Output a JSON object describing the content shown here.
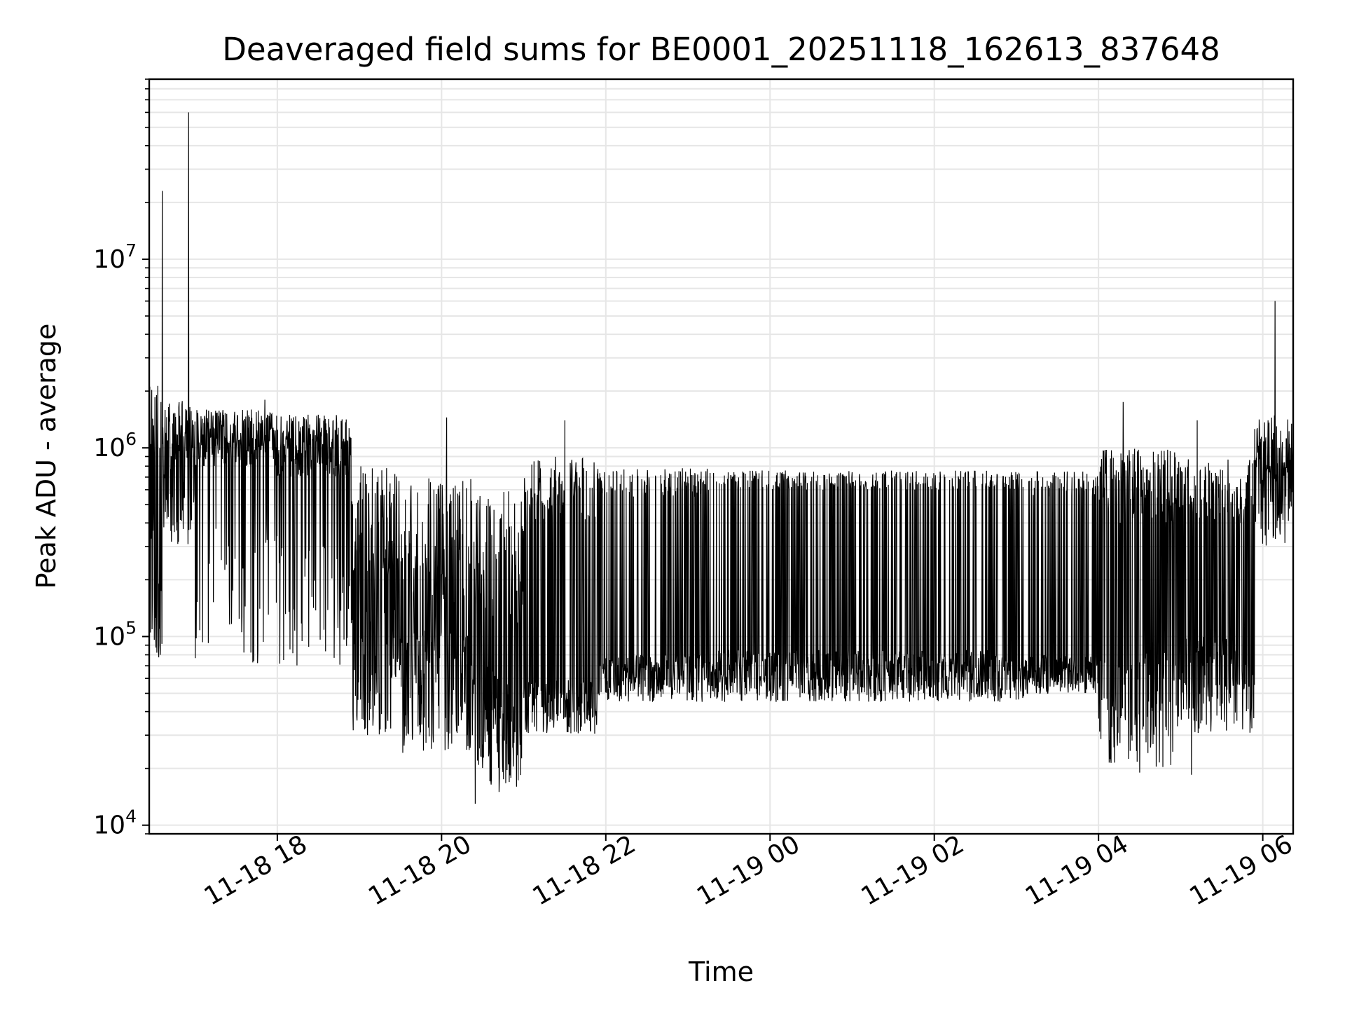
{
  "chart_data": {
    "type": "line",
    "title": "Deaveraged field sums for BE0001_20251118_162613_837648",
    "xlabel": "Time",
    "ylabel": "Peak ADU - average",
    "yscale": "log",
    "ylim": [
      9000,
      90000000
    ],
    "xlim_hours_from_2025_11_18_00_00": [
      16.44,
      30.37
    ],
    "grid": true,
    "legend": "none",
    "line_color": "#000000",
    "grid_color": "#e6e6e6",
    "x_ticks": [
      {
        "label": "11-18 18",
        "hours": 18
      },
      {
        "label": "11-18 20",
        "hours": 20
      },
      {
        "label": "11-18 22",
        "hours": 22
      },
      {
        "label": "11-19 00",
        "hours": 24
      },
      {
        "label": "11-19 02",
        "hours": 26
      },
      {
        "label": "11-19 04",
        "hours": 28
      },
      {
        "label": "11-19 06",
        "hours": 30
      }
    ],
    "y_ticks": [
      {
        "base": "10",
        "exp": "4",
        "value": 10000
      },
      {
        "base": "10",
        "exp": "5",
        "value": 100000
      },
      {
        "base": "10",
        "exp": "6",
        "value": 1000000
      },
      {
        "base": "10",
        "exp": "7",
        "value": 10000000
      }
    ],
    "segments": [
      {
        "start": 16.44,
        "end": 16.6,
        "base_lo": 60000,
        "base_hi": 200000,
        "peak_lo": 300000,
        "peak_hi": 2200000,
        "spike_prob": 0.5
      },
      {
        "start": 16.6,
        "end": 17.0,
        "base_lo": 300000,
        "base_hi": 900000,
        "peak_lo": 900000,
        "peak_hi": 1800000,
        "spike_prob": 0.6
      },
      {
        "start": 17.0,
        "end": 18.0,
        "base_lo": 70000,
        "base_hi": 400000,
        "peak_lo": 800000,
        "peak_hi": 1600000,
        "spike_prob": 0.85
      },
      {
        "start": 18.0,
        "end": 18.9,
        "base_lo": 70000,
        "base_hi": 300000,
        "peak_lo": 700000,
        "peak_hi": 1500000,
        "spike_prob": 0.8
      },
      {
        "start": 18.9,
        "end": 19.5,
        "base_lo": 30000,
        "base_hi": 140000,
        "peak_lo": 200000,
        "peak_hi": 800000,
        "spike_prob": 0.45
      },
      {
        "start": 19.5,
        "end": 20.4,
        "base_lo": 24000,
        "base_hi": 110000,
        "peak_lo": 150000,
        "peak_hi": 700000,
        "spike_prob": 0.4
      },
      {
        "start": 20.4,
        "end": 21.0,
        "base_lo": 16000,
        "base_hi": 70000,
        "peak_lo": 100000,
        "peak_hi": 600000,
        "spike_prob": 0.4
      },
      {
        "start": 21.0,
        "end": 21.9,
        "base_lo": 30000,
        "base_hi": 60000,
        "peak_lo": 400000,
        "peak_hi": 900000,
        "spike_prob": 0.35
      },
      {
        "start": 21.9,
        "end": 23.3,
        "base_lo": 45000,
        "base_hi": 80000,
        "peak_lo": 550000,
        "peak_hi": 780000,
        "spike_prob": 0.3
      },
      {
        "start": 23.3,
        "end": 27.1,
        "base_lo": 45000,
        "base_hi": 85000,
        "peak_lo": 600000,
        "peak_hi": 760000,
        "spike_prob": 0.3
      },
      {
        "start": 27.1,
        "end": 28.0,
        "base_lo": 50000,
        "base_hi": 80000,
        "peak_lo": 550000,
        "peak_hi": 760000,
        "spike_prob": 0.3
      },
      {
        "start": 28.0,
        "end": 29.0,
        "base_lo": 20000,
        "base_hi": 90000,
        "peak_lo": 400000,
        "peak_hi": 1000000,
        "spike_prob": 0.45
      },
      {
        "start": 29.0,
        "end": 29.9,
        "base_lo": 30000,
        "base_hi": 100000,
        "peak_lo": 400000,
        "peak_hi": 900000,
        "spike_prob": 0.45
      },
      {
        "start": 29.9,
        "end": 30.37,
        "base_lo": 300000,
        "base_hi": 900000,
        "peak_lo": 700000,
        "peak_hi": 1500000,
        "spike_prob": 0.5
      }
    ],
    "notable_points": [
      {
        "hours": 16.6,
        "value": 23000000
      },
      {
        "hours": 16.92,
        "value": 60000000
      },
      {
        "hours": 17.85,
        "value": 1800000
      },
      {
        "hours": 20.06,
        "value": 1450000
      },
      {
        "hours": 20.41,
        "value": 13000
      },
      {
        "hours": 20.7,
        "value": 15000
      },
      {
        "hours": 21.5,
        "value": 1400000
      },
      {
        "hours": 28.3,
        "value": 1750000
      },
      {
        "hours": 28.5,
        "value": 19000
      },
      {
        "hours": 29.13,
        "value": 18500
      },
      {
        "hours": 29.2,
        "value": 1400000
      },
      {
        "hours": 30.15,
        "value": 6000000
      },
      {
        "hours": 30.37,
        "value": 45000
      }
    ]
  }
}
